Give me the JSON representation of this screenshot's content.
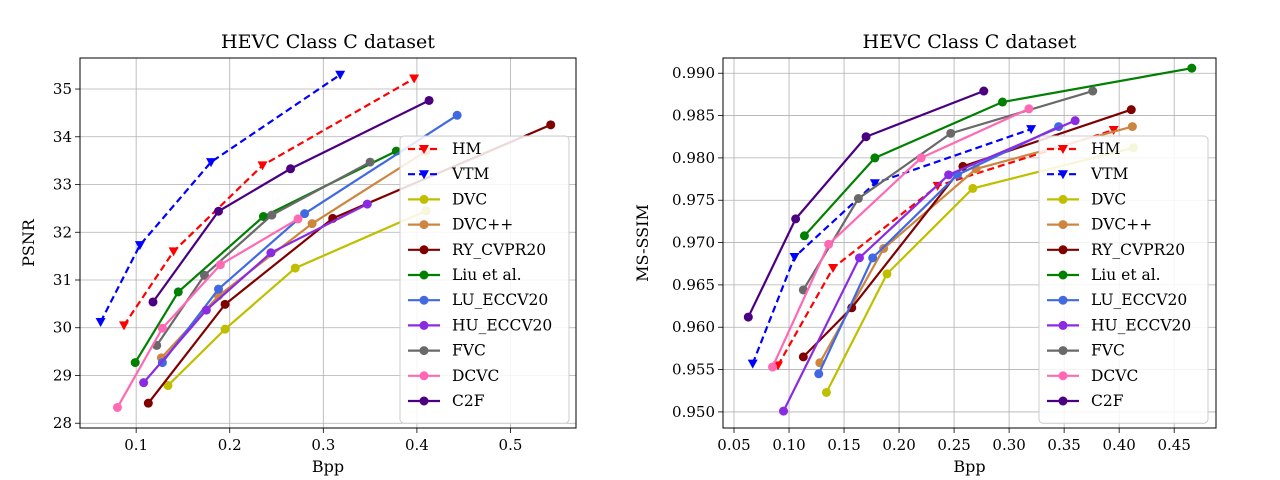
{
  "chart_data": [
    {
      "type": "line",
      "title": "HEVC Class C dataset",
      "xlabel": "Bpp",
      "ylabel": "PSNR",
      "xlim": [
        0.04,
        0.57
      ],
      "ylim": [
        27.9,
        35.65
      ],
      "xticks": [
        0.1,
        0.2,
        0.3,
        0.4,
        0.5
      ],
      "xtick_labels": [
        "0.1",
        "0.2",
        "0.3",
        "0.4",
        "0.5"
      ],
      "yticks": [
        28,
        29,
        30,
        31,
        32,
        33,
        34,
        35
      ],
      "ytick_labels": [
        "28",
        "29",
        "30",
        "31",
        "32",
        "33",
        "34",
        "35"
      ],
      "grid": true,
      "legend_position": "right",
      "series": [
        {
          "name": "HM",
          "color": "#ff0000",
          "style": "dashed",
          "marker": "triangle-down",
          "x": [
            0.087,
            0.14,
            0.235,
            0.397
          ],
          "y": [
            30.05,
            31.6,
            33.4,
            35.22
          ]
        },
        {
          "name": "VTM",
          "color": "#0000ff",
          "style": "dashed",
          "marker": "triangle-down",
          "x": [
            0.062,
            0.104,
            0.18,
            0.318
          ],
          "y": [
            30.12,
            31.73,
            33.47,
            35.3
          ]
        },
        {
          "name": "DVC",
          "color": "#bfbf00",
          "style": "solid",
          "marker": "circle",
          "x": [
            0.134,
            0.195,
            0.27,
            0.41
          ],
          "y": [
            28.79,
            29.97,
            31.25,
            32.45
          ]
        },
        {
          "name": "DVC++",
          "color": "#cd853f",
          "style": "solid",
          "marker": "circle",
          "x": [
            0.127,
            0.188,
            0.288,
            0.41
          ],
          "y": [
            29.37,
            30.67,
            32.18,
            33.7
          ]
        },
        {
          "name": "RY_CVPR20",
          "color": "#800000",
          "style": "solid",
          "marker": "circle",
          "x": [
            0.113,
            0.195,
            0.31,
            0.543
          ],
          "y": [
            28.42,
            30.49,
            32.29,
            34.25
          ]
        },
        {
          "name": "Liu et al.",
          "color": "#008000",
          "style": "solid",
          "marker": "circle",
          "x": [
            0.099,
            0.145,
            0.236,
            0.378
          ],
          "y": [
            29.27,
            30.75,
            32.33,
            33.7
          ]
        },
        {
          "name": "LU_ECCV20",
          "color": "#4169e1",
          "style": "solid",
          "marker": "circle",
          "x": [
            0.128,
            0.188,
            0.28,
            0.443
          ],
          "y": [
            29.27,
            30.81,
            32.39,
            34.45
          ]
        },
        {
          "name": "HU_ECCV20",
          "color": "#8a2be2",
          "style": "solid",
          "marker": "circle",
          "x": [
            0.108,
            0.175,
            0.244,
            0.347
          ],
          "y": [
            28.85,
            30.37,
            31.57,
            32.59
          ]
        },
        {
          "name": "FVC",
          "color": "#696969",
          "style": "solid",
          "marker": "circle",
          "x": [
            0.122,
            0.173,
            0.245,
            0.35
          ],
          "y": [
            29.63,
            31.1,
            32.36,
            33.47
          ]
        },
        {
          "name": "DCVC",
          "color": "#ff69b4",
          "style": "solid",
          "marker": "circle",
          "x": [
            0.08,
            0.128,
            0.19,
            0.273
          ],
          "y": [
            28.33,
            29.99,
            31.32,
            32.28
          ]
        },
        {
          "name": "C2F",
          "color": "#4b0082",
          "style": "solid",
          "marker": "circle",
          "x": [
            0.118,
            0.188,
            0.265,
            0.413
          ],
          "y": [
            30.54,
            32.44,
            33.33,
            34.76
          ]
        }
      ]
    },
    {
      "type": "line",
      "title": "HEVC Class C dataset",
      "xlabel": "Bpp",
      "ylabel": "MS-SSIM",
      "xlim": [
        0.04,
        0.488
      ],
      "ylim": [
        0.9481,
        0.9918
      ],
      "xticks": [
        0.05,
        0.1,
        0.15,
        0.2,
        0.25,
        0.3,
        0.35,
        0.4,
        0.45
      ],
      "xtick_labels": [
        "0.05",
        "0.10",
        "0.15",
        "0.20",
        "0.25",
        "0.30",
        "0.35",
        "0.40",
        "0.45"
      ],
      "yticks": [
        0.95,
        0.955,
        0.96,
        0.965,
        0.97,
        0.975,
        0.98,
        0.985,
        0.99
      ],
      "ytick_labels": [
        "0.950",
        "0.955",
        "0.960",
        "0.965",
        "0.970",
        "0.975",
        "0.980",
        "0.985",
        "0.990"
      ],
      "grid": true,
      "legend_position": "right",
      "series": [
        {
          "name": "HM",
          "color": "#ff0000",
          "style": "dashed",
          "marker": "triangle-down",
          "x": [
            0.09,
            0.14,
            0.235,
            0.395
          ],
          "y": [
            0.9555,
            0.967,
            0.9767,
            0.9833
          ]
        },
        {
          "name": "VTM",
          "color": "#0000ff",
          "style": "dashed",
          "marker": "triangle-down",
          "x": [
            0.067,
            0.105,
            0.178,
            0.32
          ],
          "y": [
            0.9557,
            0.9683,
            0.977,
            0.9834
          ]
        },
        {
          "name": "DVC",
          "color": "#bfbf00",
          "style": "solid",
          "marker": "circle",
          "x": [
            0.134,
            0.189,
            0.267,
            0.413
          ],
          "y": [
            0.9523,
            0.9663,
            0.9764,
            0.9812
          ]
        },
        {
          "name": "DVC++",
          "color": "#cd853f",
          "style": "solid",
          "marker": "circle",
          "x": [
            0.128,
            0.186,
            0.27,
            0.412
          ],
          "y": [
            0.9558,
            0.9693,
            0.9787,
            0.9837
          ]
        },
        {
          "name": "RY_CVPR20",
          "color": "#800000",
          "style": "solid",
          "marker": "circle",
          "x": [
            0.113,
            0.157,
            0.258,
            0.411
          ],
          "y": [
            0.9565,
            0.9623,
            0.979,
            0.9857
          ]
        },
        {
          "name": "Liu et al.",
          "color": "#008000",
          "style": "solid",
          "marker": "circle",
          "x": [
            0.114,
            0.178,
            0.294,
            0.466
          ],
          "y": [
            0.9708,
            0.98,
            0.9866,
            0.9906
          ]
        },
        {
          "name": "LU_ECCV20",
          "color": "#4169e1",
          "style": "solid",
          "marker": "circle",
          "x": [
            0.127,
            0.176,
            0.253,
            0.345
          ],
          "y": [
            0.9545,
            0.9682,
            0.978,
            0.9837
          ]
        },
        {
          "name": "HU_ECCV20",
          "color": "#8a2be2",
          "style": "solid",
          "marker": "circle",
          "x": [
            0.095,
            0.164,
            0.245,
            0.36
          ],
          "y": [
            0.9501,
            0.9682,
            0.978,
            0.9844
          ]
        },
        {
          "name": "FVC",
          "color": "#696969",
          "style": "solid",
          "marker": "circle",
          "x": [
            0.113,
            0.163,
            0.247,
            0.376
          ],
          "y": [
            0.9644,
            0.9752,
            0.9829,
            0.9879
          ]
        },
        {
          "name": "DCVC",
          "color": "#ff69b4",
          "style": "solid",
          "marker": "circle",
          "x": [
            0.085,
            0.136,
            0.22,
            0.318
          ],
          "y": [
            0.9553,
            0.9698,
            0.98,
            0.9858
          ]
        },
        {
          "name": "C2F",
          "color": "#4b0082",
          "style": "solid",
          "marker": "circle",
          "x": [
            0.063,
            0.106,
            0.17,
            0.277
          ],
          "y": [
            0.9612,
            0.9728,
            0.9825,
            0.9879
          ]
        }
      ]
    }
  ]
}
